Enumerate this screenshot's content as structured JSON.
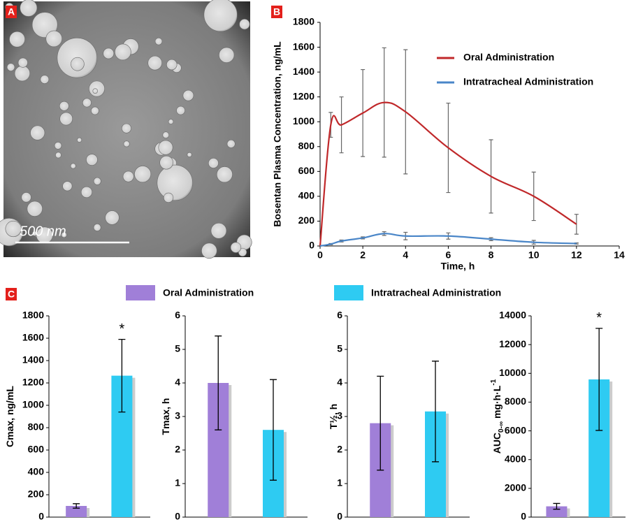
{
  "chart_data": [
    {
      "type": "image",
      "panel": "A",
      "scale_bar_label": "500 nm"
    },
    {
      "type": "line",
      "panel": "B",
      "ylabel": "Bosentan Plasma Concentration, ng/mL",
      "xlabel": "Time, h",
      "x": [
        0,
        0.5,
        1,
        2,
        3,
        4,
        6,
        8,
        10,
        12
      ],
      "xlim": [
        0,
        14
      ],
      "xticks": [
        0,
        2,
        4,
        6,
        8,
        10,
        12,
        14
      ],
      "ylim": [
        0,
        1800
      ],
      "yticks": [
        0,
        200,
        400,
        600,
        800,
        1000,
        1200,
        1400,
        1600,
        1800
      ],
      "legend": "upper right",
      "series": [
        {
          "name": "Oral Administration",
          "color": "#c0282a",
          "values": [
            0,
            975,
            975,
            1070,
            1155,
            1080,
            790,
            560,
            400,
            175
          ],
          "errors": [
            null,
            100,
            225,
            350,
            440,
            500,
            360,
            295,
            195,
            80
          ]
        },
        {
          "name": "Intratracheal Administration",
          "color": "#4a86c8",
          "values": [
            0,
            15,
            40,
            65,
            100,
            80,
            80,
            55,
            30,
            20
          ],
          "errors": [
            null,
            5,
            8,
            8,
            15,
            30,
            25,
            12,
            15,
            5
          ]
        }
      ]
    },
    {
      "type": "bar_group",
      "panel": "C",
      "series": [
        {
          "name": "Oral Administration",
          "color": "#a07fd8"
        },
        {
          "name": "Intratracheal Administration",
          "color": "#2ecbf2"
        }
      ],
      "charts": [
        {
          "ylabel": "Cmax, ng/mL",
          "ylim": [
            0,
            1800
          ],
          "yticks": [
            0,
            200,
            400,
            600,
            800,
            1000,
            1200,
            1400,
            1600,
            1800
          ],
          "values": [
            100,
            1265
          ],
          "errors": [
            20,
            325
          ],
          "value_annotations": [
            null,
            "*"
          ]
        },
        {
          "ylabel": "Tmax, h",
          "ylim": [
            0,
            6
          ],
          "yticks": [
            0,
            1,
            2,
            3,
            4,
            5,
            6
          ],
          "values": [
            4.0,
            2.6
          ],
          "errors": [
            1.4,
            1.5
          ]
        },
        {
          "ylabel": "T½, h",
          "ylim": [
            0,
            6
          ],
          "yticks": [
            0,
            1,
            2,
            3,
            4,
            5,
            6
          ],
          "values": [
            2.8,
            3.15
          ],
          "errors": [
            1.4,
            1.5
          ]
        },
        {
          "ylabel": "AUC",
          "ylabel_sub": "0-∞",
          "ylabel_unit": " mg·h·L",
          "ylabel_sup": "-1",
          "ylim": [
            0,
            14000
          ],
          "yticks": [
            0,
            2000,
            4000,
            6000,
            8000,
            10000,
            12000,
            14000
          ],
          "values": [
            750,
            9580
          ],
          "errors": [
            200,
            3550
          ],
          "value_annotations": [
            null,
            "*"
          ]
        }
      ]
    }
  ]
}
